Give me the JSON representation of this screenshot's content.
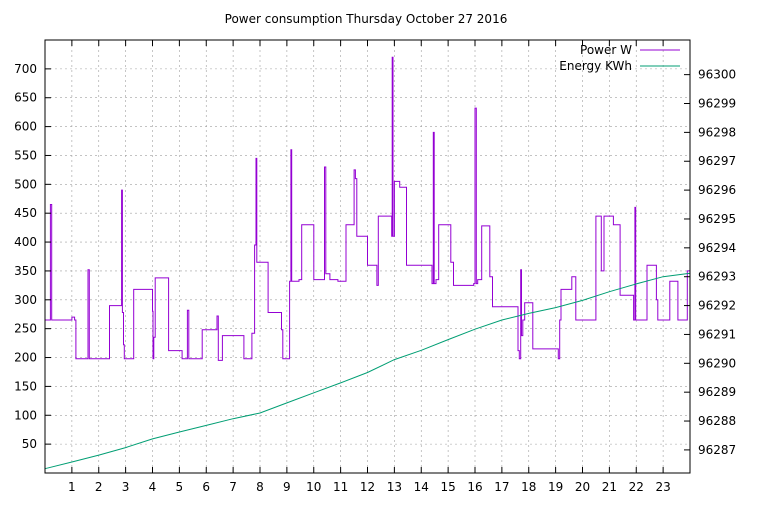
{
  "chart_data": {
    "type": "line",
    "title": "Power consumption Thursday October 27 2016",
    "xlabel": "",
    "ylabel": "",
    "y2label": "",
    "xlim": [
      0,
      24
    ],
    "ylim": [
      0,
      750
    ],
    "y2lim": [
      96286.2,
      96301.2
    ],
    "x_ticks": [
      "1",
      "2",
      "3",
      "4",
      "5",
      "6",
      "7",
      "8",
      "9",
      "10",
      "11",
      "12",
      "13",
      "14",
      "15",
      "16",
      "17",
      "18",
      "19",
      "20",
      "21",
      "22",
      "23"
    ],
    "y_ticks": [
      "50",
      "100",
      "150",
      "200",
      "250",
      "300",
      "350",
      "400",
      "450",
      "500",
      "550",
      "600",
      "650",
      "700"
    ],
    "y2_ticks": [
      "96287",
      "96288",
      "96289",
      "96290",
      "96291",
      "96292",
      "96293",
      "96294",
      "96295",
      "96296",
      "96297",
      "96298",
      "96299",
      "96300"
    ],
    "grid": true,
    "legend_position": "top-right",
    "colors": {
      "power": "#9400d3",
      "energy": "#009e73",
      "grid": "#a0a0a0",
      "axes": "#000000"
    },
    "series": [
      {
        "name": "Power W",
        "axis": "left",
        "step": true,
        "points": [
          [
            0.0,
            265
          ],
          [
            0.2,
            465
          ],
          [
            0.25,
            265
          ],
          [
            1.0,
            270
          ],
          [
            1.1,
            265
          ],
          [
            1.15,
            198
          ],
          [
            1.6,
            352
          ],
          [
            1.65,
            198
          ],
          [
            2.35,
            198
          ],
          [
            2.4,
            290
          ],
          [
            2.85,
            490
          ],
          [
            2.88,
            278
          ],
          [
            2.92,
            222
          ],
          [
            2.95,
            198
          ],
          [
            3.3,
            318
          ],
          [
            4.0,
            280
          ],
          [
            4.02,
            198
          ],
          [
            4.05,
            235
          ],
          [
            4.1,
            338
          ],
          [
            4.6,
            212
          ],
          [
            5.1,
            198
          ],
          [
            5.3,
            282
          ],
          [
            5.35,
            198
          ],
          [
            5.85,
            248
          ],
          [
            6.4,
            272
          ],
          [
            6.45,
            195
          ],
          [
            6.6,
            238
          ],
          [
            7.4,
            198
          ],
          [
            7.5,
            198
          ],
          [
            7.7,
            242
          ],
          [
            7.8,
            395
          ],
          [
            7.85,
            545
          ],
          [
            7.88,
            365
          ],
          [
            8.3,
            278
          ],
          [
            8.8,
            248
          ],
          [
            8.85,
            198
          ],
          [
            9.1,
            332
          ],
          [
            9.15,
            560
          ],
          [
            9.18,
            332
          ],
          [
            9.45,
            335
          ],
          [
            9.55,
            430
          ],
          [
            10.0,
            335
          ],
          [
            10.4,
            530
          ],
          [
            10.45,
            345
          ],
          [
            10.6,
            335
          ],
          [
            10.9,
            332
          ],
          [
            11.2,
            430
          ],
          [
            11.5,
            525
          ],
          [
            11.55,
            510
          ],
          [
            11.6,
            410
          ],
          [
            11.65,
            410
          ],
          [
            12.0,
            360
          ],
          [
            12.35,
            325
          ],
          [
            12.4,
            445
          ],
          [
            12.9,
            410
          ],
          [
            12.92,
            720
          ],
          [
            12.95,
            410
          ],
          [
            13.0,
            505
          ],
          [
            13.2,
            495
          ],
          [
            13.45,
            360
          ],
          [
            14.4,
            328
          ],
          [
            14.45,
            590
          ],
          [
            14.48,
            328
          ],
          [
            14.55,
            335
          ],
          [
            14.65,
            430
          ],
          [
            15.1,
            365
          ],
          [
            15.2,
            325
          ],
          [
            15.95,
            328
          ],
          [
            16.0,
            632
          ],
          [
            16.05,
            328
          ],
          [
            16.1,
            335
          ],
          [
            16.25,
            428
          ],
          [
            16.55,
            340
          ],
          [
            16.65,
            288
          ],
          [
            17.6,
            212
          ],
          [
            17.65,
            198
          ],
          [
            17.7,
            352
          ],
          [
            17.73,
            238
          ],
          [
            17.78,
            265
          ],
          [
            17.85,
            295
          ],
          [
            18.15,
            215
          ],
          [
            19.1,
            198
          ],
          [
            19.15,
            265
          ],
          [
            19.2,
            318
          ],
          [
            19.6,
            340
          ],
          [
            19.75,
            265
          ],
          [
            20.5,
            445
          ],
          [
            20.7,
            350
          ],
          [
            20.8,
            445
          ],
          [
            21.0,
            445
          ],
          [
            21.15,
            430
          ],
          [
            21.4,
            308
          ],
          [
            21.9,
            265
          ],
          [
            21.95,
            460
          ],
          [
            21.98,
            265
          ],
          [
            22.4,
            360
          ],
          [
            22.75,
            300
          ],
          [
            22.8,
            265
          ],
          [
            23.25,
            332
          ],
          [
            23.55,
            265
          ],
          [
            23.9,
            350
          ],
          [
            24.0,
            350
          ]
        ]
      },
      {
        "name": "Energy KWh",
        "axis": "right",
        "step": false,
        "points": [
          [
            0.0,
            96286.35
          ],
          [
            1.0,
            96286.58
          ],
          [
            2.0,
            96286.82
          ],
          [
            3.0,
            96287.08
          ],
          [
            4.0,
            96287.38
          ],
          [
            5.0,
            96287.62
          ],
          [
            6.0,
            96287.85
          ],
          [
            7.0,
            96288.08
          ],
          [
            8.0,
            96288.28
          ],
          [
            9.0,
            96288.63
          ],
          [
            10.0,
            96288.98
          ],
          [
            11.0,
            96289.32
          ],
          [
            12.0,
            96289.68
          ],
          [
            13.0,
            96290.13
          ],
          [
            14.0,
            96290.45
          ],
          [
            15.0,
            96290.82
          ],
          [
            16.0,
            96291.18
          ],
          [
            17.0,
            96291.5
          ],
          [
            18.0,
            96291.73
          ],
          [
            19.0,
            96291.93
          ],
          [
            20.0,
            96292.18
          ],
          [
            21.0,
            96292.48
          ],
          [
            22.0,
            96292.75
          ],
          [
            23.0,
            96293.0
          ],
          [
            24.0,
            96293.12
          ]
        ]
      }
    ]
  }
}
